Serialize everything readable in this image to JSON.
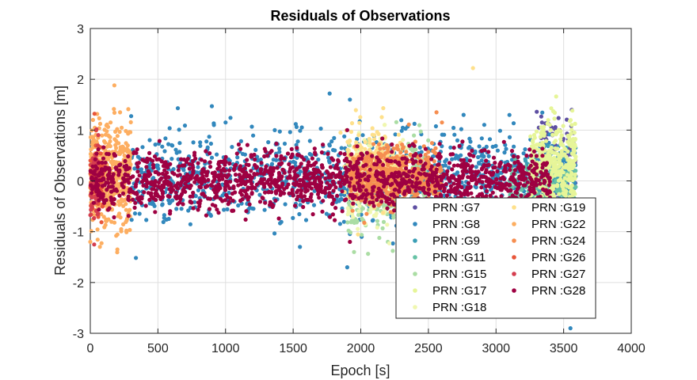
{
  "chart_data": {
    "type": "scatter",
    "title": "Residuals of Observations",
    "xlabel": "Epoch [s]",
    "ylabel": "Residuals of Observations [m]",
    "xlim": [
      0,
      4000
    ],
    "ylim": [
      -3,
      3
    ],
    "xticks": [
      0,
      500,
      1000,
      1500,
      2000,
      2500,
      3000,
      3500,
      4000
    ],
    "yticks": [
      -3,
      -2,
      -1,
      0,
      1,
      2,
      3
    ],
    "grid": true,
    "legend_position": "lower-right",
    "series": [
      {
        "name": "PRN :G7",
        "color": "#5e4fa2",
        "x_range": [
          3300,
          3590
        ],
        "spread": 0.5,
        "center": 0.3,
        "count": 120,
        "extremes": [
          [
            3340,
            1.15
          ],
          [
            3560,
            1.4
          ],
          [
            3440,
            1.0
          ]
        ]
      },
      {
        "name": "PRN :G8",
        "color": "#3288bd",
        "x_range": [
          300,
          3590
        ],
        "spread": 0.45,
        "center": 0.05,
        "count": 1100,
        "extremes": [
          [
            1770,
            1.72
          ],
          [
            1920,
            1.6
          ],
          [
            1000,
            1.15
          ],
          [
            1550,
            -1.3
          ],
          [
            1900,
            -1.7
          ],
          [
            3510,
            -2.65
          ],
          [
            3550,
            -2.9
          ],
          [
            2760,
            1.3
          ]
        ]
      },
      {
        "name": "PRN :G9",
        "color": "#3a9eb5",
        "x_range": [
          3200,
          3590
        ],
        "spread": 0.35,
        "center": -0.1,
        "count": 150,
        "extremes": []
      },
      {
        "name": "PRN :G11",
        "color": "#66c2a5",
        "x_range": [
          3100,
          3590
        ],
        "spread": 0.25,
        "center": -0.15,
        "count": 150,
        "extremes": []
      },
      {
        "name": "PRN :G15",
        "color": "#abdda4",
        "x_range": [
          1900,
          2500
        ],
        "spread": 0.5,
        "center": -0.2,
        "count": 250,
        "extremes": [
          [
            2200,
            -1.2
          ],
          [
            2300,
            -1.3
          ],
          [
            1950,
            -1.4
          ]
        ]
      },
      {
        "name": "PRN :G17",
        "color": "#e6f598",
        "x_range": [
          3250,
          3590
        ],
        "spread": 0.45,
        "center": 0.25,
        "count": 380,
        "extremes": [
          [
            3560,
            1.1
          ],
          [
            3580,
            0.95
          ]
        ]
      },
      {
        "name": "PRN :G18",
        "color": "#f0f7b0",
        "x_range": [
          1900,
          2350
        ],
        "spread": 0.4,
        "center": 0.1,
        "count": 200,
        "extremes": []
      },
      {
        "name": "PRN :G19",
        "color": "#fee08b",
        "x_range": [
          1880,
          2300
        ],
        "spread": 0.4,
        "center": 0.3,
        "count": 250,
        "extremes": [
          [
            2830,
            2.22
          ],
          [
            1850,
            0.95
          ]
        ]
      },
      {
        "name": "PRN :G22",
        "color": "#fdae61",
        "x_range": [
          0,
          300
        ],
        "spread": 0.5,
        "center": 0.1,
        "count": 450,
        "extremes": [
          [
            20,
            1.2
          ],
          [
            220,
            1.35
          ],
          [
            0,
            -1.2
          ],
          [
            200,
            -1.35
          ],
          [
            150,
            1.15
          ]
        ]
      },
      {
        "name": "PRN :G24",
        "color": "#f68e50",
        "x_range": [
          1920,
          2600
        ],
        "spread": 0.28,
        "center": 0.05,
        "count": 700,
        "extremes": [
          [
            2560,
            1.35
          ],
          [
            2600,
            1.15
          ],
          [
            2560,
            -1.0
          ]
        ]
      },
      {
        "name": "PRN :G26",
        "color": "#e8563a",
        "x_range": [
          0,
          100
        ],
        "spread": 0.4,
        "center": 0.0,
        "count": 70,
        "extremes": []
      },
      {
        "name": "PRN :G27",
        "color": "#d53e4f",
        "x_range": [
          0,
          60
        ],
        "spread": 0.45,
        "center": 0.0,
        "count": 60,
        "extremes": []
      },
      {
        "name": "PRN :G28",
        "color": "#9e0142",
        "x_range": [
          0,
          3400
        ],
        "spread": 0.28,
        "center": 0.0,
        "count": 1600,
        "extremes": [
          [
            1900,
            1.0
          ],
          [
            1920,
            -1.2
          ],
          [
            2400,
            0.5
          ]
        ]
      }
    ]
  }
}
